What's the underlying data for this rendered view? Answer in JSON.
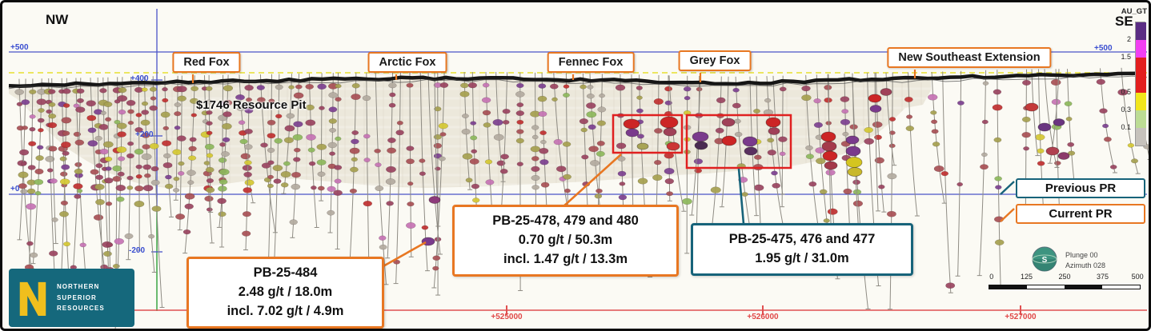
{
  "orientation": {
    "nw": "NW",
    "se": "SE"
  },
  "zones": [
    {
      "label": "Red Fox"
    },
    {
      "label": "Arctic Fox"
    },
    {
      "label": "Fennec Fox"
    },
    {
      "label": "Grey Fox"
    },
    {
      "label": "New Southeast Extension"
    }
  ],
  "annotations": {
    "resource_pit": "$1746 Resource Pit"
  },
  "axis": {
    "elevations_left": [
      "+500",
      "+400",
      "+200",
      "+0",
      "-200"
    ],
    "elevation_right": "+500",
    "eastings": [
      "+525000",
      "+526000",
      "+527000"
    ]
  },
  "callouts": [
    {
      "name": "pb-25-484",
      "line1": "PB-25-484",
      "line2": "2.48 g/t  / 18.0m",
      "line3": "incl. 7.02 g/t / 4.9m",
      "type": "current"
    },
    {
      "name": "pb-25-478-480",
      "line1": "PB-25-478, 479 and 480",
      "line2": "0.70 g/t / 50.3m",
      "line3": "incl. 1.47 g/t / 13.3m",
      "type": "current"
    },
    {
      "name": "pb-25-475-477",
      "line1": "PB-25-475, 476 and 477",
      "line2": "1.95 g/t / 31.0m",
      "type": "previous"
    }
  ],
  "pr_legend": [
    {
      "label": "Previous PR"
    },
    {
      "label": "Current PR"
    }
  ],
  "au_legend": {
    "title": "AU_GT",
    "thresholds": [
      "2",
      "1.5",
      "0.5",
      "0.3",
      "0.1"
    ],
    "colors": [
      "#5b2d84",
      "#f23ff2",
      "#e31e1e",
      "#f2e61c",
      "#bcdc94",
      "#c6c2bc"
    ]
  },
  "view": {
    "plunge": "Plunge 00",
    "azimuth": "Azimuth 028"
  },
  "scale_bar": {
    "ticks": [
      "0",
      "125",
      "250",
      "375",
      "500"
    ]
  },
  "logo": {
    "line1": "NORTHERN",
    "line2": "SUPERIOR",
    "line3": "RESOURCES"
  },
  "colors": {
    "current_pr": "#e87722",
    "previous_pr": "#17637a",
    "highlight_box": "#e02020",
    "gridline_blue": "#4a55c8",
    "datum_red": "#e05050",
    "surface_dashed": "#e8df2e",
    "topo_black": "#161616",
    "axis_green": "#3aa545"
  }
}
